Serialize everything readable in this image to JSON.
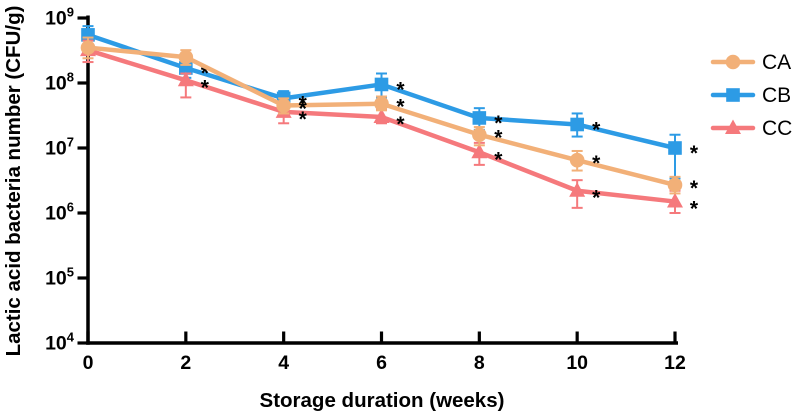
{
  "figure": {
    "background": "#ffffff",
    "axis_color": "#000000",
    "significance_marker": "*"
  },
  "chart_data": {
    "type": "line",
    "title": "",
    "xlabel": "Storage duration (weeks)",
    "ylabel": "Lactic acid bacteria number (CFU/g)",
    "x": [
      0,
      2,
      4,
      6,
      8,
      10,
      12
    ],
    "x_tick_labels": [
      "0",
      "2",
      "4",
      "6",
      "8",
      "10",
      "12"
    ],
    "y_scale": "log10",
    "y_tick_exponents": [
      9,
      8,
      7,
      6,
      5,
      4
    ],
    "ylim": [
      10000.0,
      1000000000.0
    ],
    "grid": false,
    "legend_position": "right-top",
    "series": [
      {
        "name": "CA",
        "color": "#F2B078",
        "marker": "circle",
        "values": [
          350000000.0,
          250000000.0,
          45000000.0,
          48000000.0,
          16000000.0,
          6500000.0,
          2700000.0
        ],
        "err_lo": [
          240000000.0,
          190000000.0,
          34000000.0,
          38000000.0,
          11000000.0,
          4500000.0,
          2000000.0
        ],
        "err_hi": [
          500000000.0,
          320000000.0,
          58000000.0,
          62000000.0,
          21000000.0,
          9000000.0,
          3600000.0
        ],
        "significant": [
          false,
          false,
          true,
          true,
          true,
          true,
          true
        ]
      },
      {
        "name": "CB",
        "color": "#2D9BE5",
        "marker": "square",
        "values": [
          550000000.0,
          170000000.0,
          58000000.0,
          95000000.0,
          29000000.0,
          23000000.0,
          10000000.0
        ],
        "err_lo": [
          400000000.0,
          120000000.0,
          44000000.0,
          60000000.0,
          19000000.0,
          15000000.0,
          3400000.0
        ],
        "err_hi": [
          750000000.0,
          240000000.0,
          75000000.0,
          140000000.0,
          41000000.0,
          34000000.0,
          16000000.0
        ],
        "significant": [
          false,
          true,
          true,
          true,
          true,
          true,
          true
        ]
      },
      {
        "name": "CC",
        "color": "#F5797C",
        "marker": "triangle",
        "values": [
          320000000.0,
          110000000.0,
          36000000.0,
          30000000.0,
          8600000.0,
          2200000.0,
          1500000.0
        ],
        "err_lo": [
          210000000.0,
          60000000.0,
          24000000.0,
          24000000.0,
          5500000.0,
          1200000.0,
          1000000.0
        ],
        "err_hi": [
          450000000.0,
          140000000.0,
          52000000.0,
          39000000.0,
          12000000.0,
          3200000.0,
          2200000.0
        ],
        "significant": [
          false,
          true,
          true,
          true,
          true,
          true,
          true
        ]
      }
    ]
  }
}
